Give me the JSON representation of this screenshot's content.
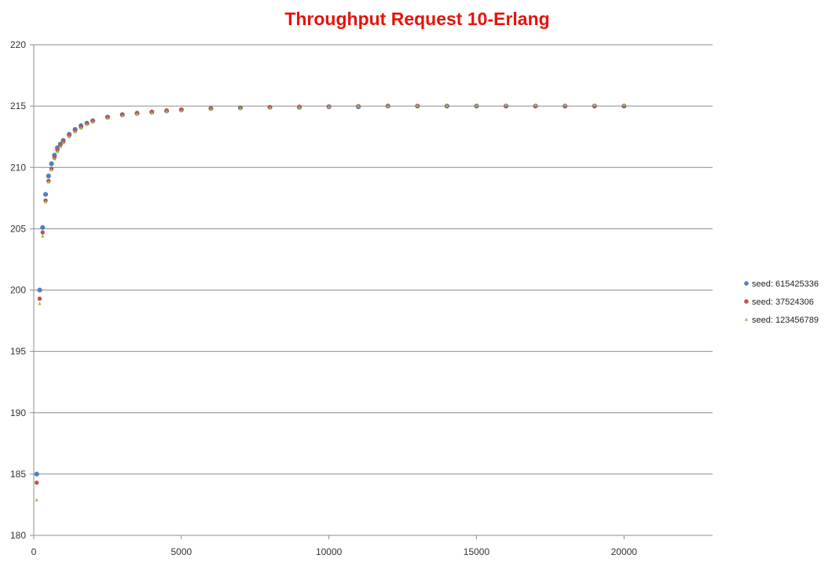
{
  "chart_data": {
    "type": "scatter",
    "title": "Throughput Request 10-Erlang",
    "title_color": "#e8120c",
    "xlabel": "",
    "ylabel": "",
    "xlim": [
      0,
      23000
    ],
    "ylim": [
      180,
      220
    ],
    "x_ticks": [
      0,
      5000,
      10000,
      15000,
      20000
    ],
    "x_tick_labels": [
      "0",
      "5000",
      "10000",
      "15000",
      "20000"
    ],
    "y_ticks": [
      180,
      185,
      190,
      195,
      200,
      205,
      210,
      215,
      220
    ],
    "y_tick_labels": [
      "180",
      "185",
      "190",
      "195",
      "200",
      "205",
      "210",
      "215",
      "220"
    ],
    "grid": "horizontal",
    "legend_position": "right",
    "x": [
      100,
      200,
      300,
      400,
      500,
      600,
      700,
      800,
      900,
      1000,
      1200,
      1400,
      1600,
      1800,
      2000,
      2500,
      3000,
      3500,
      4000,
      4500,
      5000,
      6000,
      7000,
      8000,
      9000,
      10000,
      11000,
      12000,
      13000,
      14000,
      15000,
      16000,
      17000,
      18000,
      19000,
      20000
    ],
    "series": [
      {
        "name": "seed: 615425336",
        "color": "#4f81bd",
        "marker": "circle",
        "values": [
          185.0,
          200.0,
          205.1,
          207.8,
          209.3,
          210.3,
          211.0,
          211.6,
          211.9,
          212.2,
          212.7,
          213.1,
          213.4,
          213.6,
          213.8,
          214.1,
          214.3,
          214.4,
          214.5,
          214.6,
          214.7,
          214.8,
          214.85,
          214.9,
          214.9,
          214.95,
          214.95,
          215.0,
          215.0,
          215.0,
          215.0,
          215.0,
          215.0,
          215.0,
          215.0,
          215.0
        ]
      },
      {
        "name": "seed: 37524306",
        "color": "#c0504d",
        "marker": "circle",
        "values": [
          184.3,
          199.3,
          204.7,
          207.3,
          208.9,
          209.9,
          210.8,
          211.4,
          211.8,
          212.1,
          212.6,
          213.0,
          213.3,
          213.6,
          213.8,
          214.1,
          214.3,
          214.45,
          214.55,
          214.65,
          214.7,
          214.8,
          214.85,
          214.9,
          214.95,
          214.95,
          215.0,
          215.0,
          215.0,
          215.0,
          215.0,
          215.0,
          215.0,
          215.0,
          215.0,
          215.0
        ]
      },
      {
        "name": "seed: 123456789",
        "color": "#9bbb59",
        "marker": "triangle",
        "values": [
          182.9,
          198.9,
          204.4,
          207.2,
          208.8,
          209.8,
          210.7,
          211.3,
          211.7,
          212.0,
          212.5,
          212.9,
          213.2,
          213.5,
          213.7,
          214.0,
          214.2,
          214.35,
          214.45,
          214.55,
          214.6,
          214.75,
          214.8,
          214.85,
          214.9,
          214.95,
          215.0,
          215.0,
          215.05,
          215.05,
          215.05,
          215.1,
          215.1,
          215.1,
          215.1,
          215.1
        ]
      }
    ]
  }
}
